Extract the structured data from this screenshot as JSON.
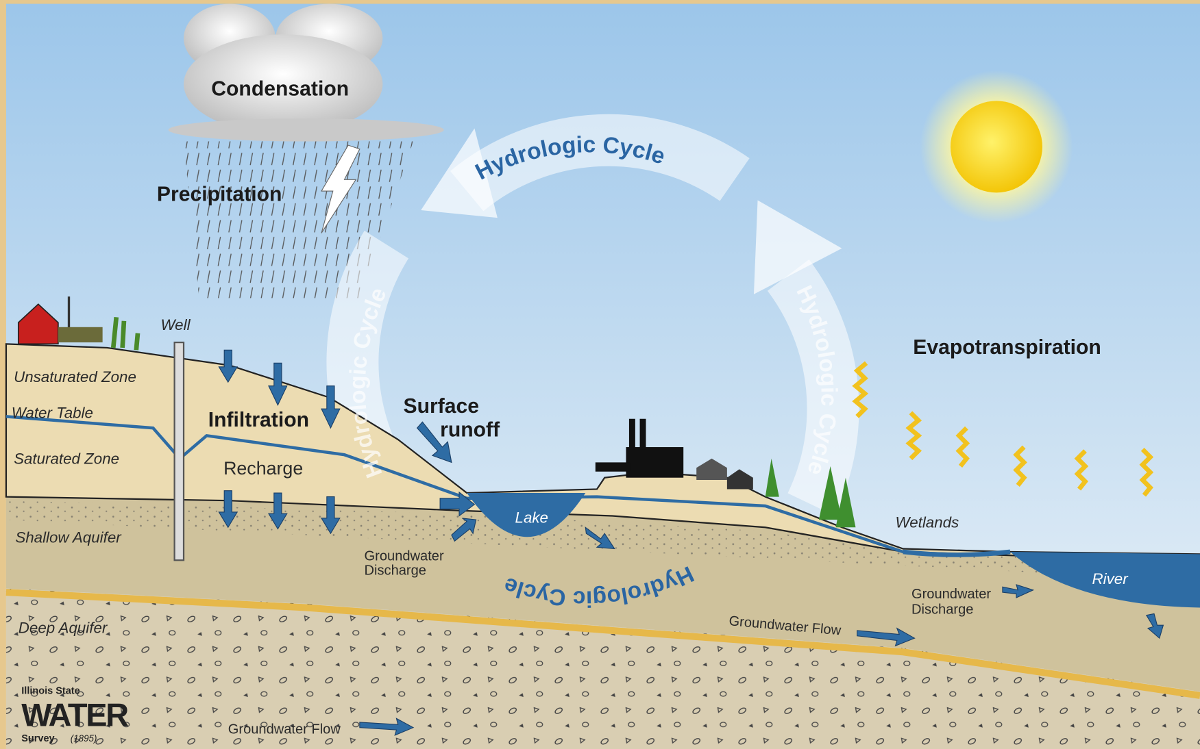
{
  "labels": {
    "condensation": "Condensation",
    "precipitation": "Precipitation",
    "hydrologic_cycle": [
      "Hydrologic Cycle",
      "Hydrologic Cycle",
      "Hydrologic Cycle",
      "Hydrologic Cycle"
    ],
    "evapotranspiration": "Evapotranspiration",
    "well": "Well",
    "unsaturated_zone": "Unsaturated Zone",
    "water_table": "Water Table",
    "saturated_zone": "Saturated Zone",
    "infiltration": "Infiltration",
    "recharge": "Recharge",
    "surface_runoff": [
      "Surface",
      "runoff"
    ],
    "lake": "Lake",
    "shallow_aquifer": "Shallow Aquifer",
    "groundwater_discharge_lake": [
      "Groundwater",
      "Discharge"
    ],
    "wetlands": "Wetlands",
    "river": "River",
    "groundwater_discharge_river": [
      "Groundwater",
      "Discharge"
    ],
    "deep_aquifer": "Deep Aquifer",
    "groundwater_flow_upper": "Groundwater Flow",
    "groundwater_flow_lower": "Groundwater Flow"
  },
  "logo": [
    "Illinois State",
    "WATER",
    "Survey",
    "(1895)"
  ]
}
